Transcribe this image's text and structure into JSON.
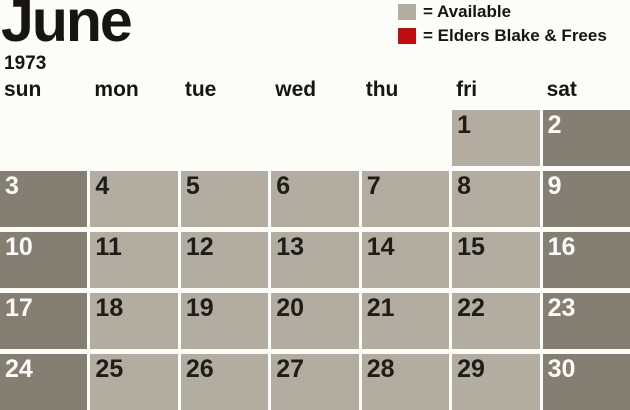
{
  "header": {
    "title": "June",
    "year": "1973"
  },
  "legend": {
    "items": [
      {
        "name": "available",
        "swatch_color": "#b3aca0",
        "label": "= Available"
      },
      {
        "name": "elders-blake-frees",
        "swatch_color": "#c00d0d",
        "label": "= Elders Blake & Frees"
      }
    ]
  },
  "calendar": {
    "weekday_headers": [
      "sun",
      "mon",
      "tue",
      "wed",
      "thu",
      "fri",
      "sat"
    ],
    "weeks": [
      [
        "",
        "",
        "",
        "",
        "",
        "1",
        "2"
      ],
      [
        "3",
        "4",
        "5",
        "6",
        "7",
        "8",
        "9"
      ],
      [
        "10",
        "11",
        "12",
        "13",
        "14",
        "15",
        "16"
      ],
      [
        "17",
        "18",
        "19",
        "20",
        "21",
        "22",
        "23"
      ],
      [
        "24",
        "25",
        "26",
        "27",
        "28",
        "29",
        "30"
      ]
    ],
    "weekend_columns": [
      0,
      6
    ],
    "all_days_status": "available"
  },
  "colors": {
    "background": "#fcfdf9",
    "weekday_cell": "#b3aca0",
    "weekend_cell": "#857e72",
    "weekday_number": "#1e1d1a",
    "weekend_number": "#fbfaf7"
  }
}
